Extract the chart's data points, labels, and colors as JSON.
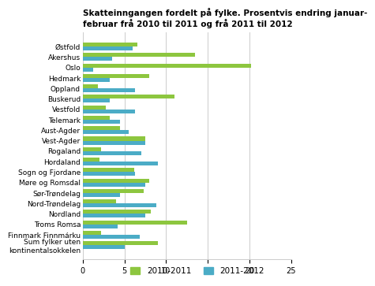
{
  "title": "Skatteinngangen fordelt på fylke. Prosentvis endring januar-\nfebruar frå 2010 til 2011 og frå 2011 til 2012",
  "categories": [
    "Østfold",
    "Akershus",
    "Oslo",
    "Hedmark",
    "Oppland",
    "Buskerud",
    "Vestfold",
    "Telemark",
    "Aust-Agder",
    "Vest-Agder",
    "Rogaland",
    "Hordaland",
    "Sogn og Fjordane",
    "Møre og Romsdal",
    "Sør-Trøndelag",
    "Nord-Trøndelag",
    "Nordland",
    "Troms Romsa",
    "Finnmark Finnmárku",
    "Sum fylker uten\nkontinentalsokkelen"
  ],
  "values_2010_2011": [
    6.5,
    13.5,
    20.2,
    8.0,
    1.8,
    11.0,
    2.8,
    3.2,
    4.5,
    7.5,
    2.2,
    2.0,
    6.2,
    8.0,
    7.3,
    4.0,
    8.2,
    12.5,
    2.2,
    9.0
  ],
  "values_2011_2012": [
    6.0,
    3.5,
    1.2,
    3.2,
    6.3,
    3.2,
    6.3,
    4.5,
    5.5,
    7.5,
    7.0,
    9.0,
    6.3,
    7.5,
    4.5,
    8.8,
    7.5,
    4.2,
    6.8,
    5.0
  ],
  "color_2010_2011": "#8dc63f",
  "color_2011_2012": "#4bacc6",
  "xlim": [
    0,
    25
  ],
  "xticks": [
    0,
    5,
    10,
    15,
    20,
    25
  ],
  "legend_2010_2011": "2010-2011",
  "legend_2011_2012": "2011-2012",
  "background_color": "#ffffff",
  "grid_color": "#cccccc"
}
